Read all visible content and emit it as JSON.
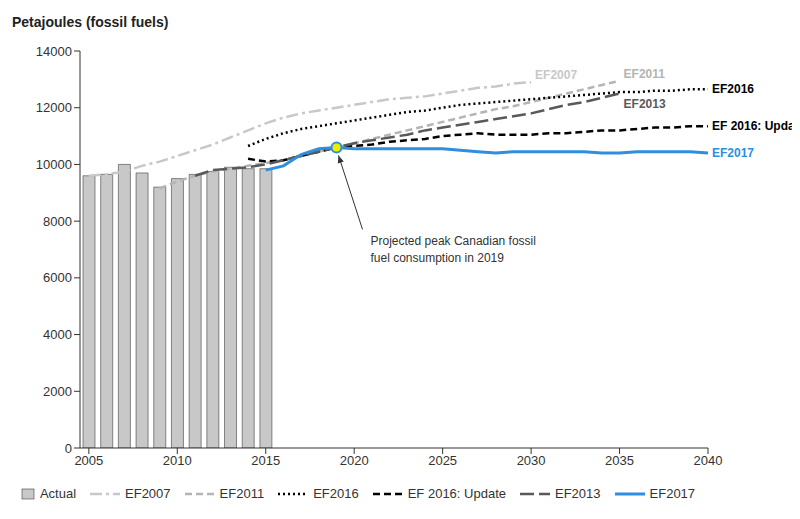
{
  "chart_data": {
    "type": "combo",
    "y_label": "Petajoules (fossil fuels)",
    "x": [
      2005,
      2006,
      2007,
      2008,
      2009,
      2010,
      2011,
      2012,
      2013,
      2014,
      2015,
      2016,
      2017,
      2018,
      2019,
      2020,
      2021,
      2022,
      2023,
      2024,
      2025,
      2026,
      2027,
      2028,
      2029,
      2030,
      2031,
      2032,
      2033,
      2034,
      2035,
      2036,
      2037,
      2038,
      2039,
      2040
    ],
    "series": [
      {
        "name": "Actual",
        "type": "bar",
        "color": "#c8c8c8",
        "values": [
          9600,
          9650,
          10000,
          9700,
          9200,
          9500,
          9650,
          9750,
          9900,
          9850,
          9850,
          null,
          null,
          null,
          null,
          null,
          null,
          null,
          null,
          null,
          null,
          null,
          null,
          null,
          null,
          null,
          null,
          null,
          null,
          null,
          null,
          null,
          null,
          null,
          null,
          null
        ]
      },
      {
        "name": "EF2007",
        "type": "line",
        "color": "#c8c8c8",
        "line_style": "dashdot",
        "values": [
          9600,
          9650,
          9750,
          9950,
          10100,
          10300,
          10500,
          10700,
          10950,
          11200,
          11450,
          11650,
          11800,
          11900,
          12000,
          12100,
          12200,
          12300,
          12350,
          12400,
          12500,
          12600,
          12700,
          12750,
          12850,
          12900,
          null,
          null,
          null,
          null,
          null,
          null,
          null,
          null,
          null,
          null
        ]
      },
      {
        "name": "EF2011",
        "type": "line",
        "color": "#b4b4b4",
        "line_style": "dashed",
        "values": [
          null,
          null,
          null,
          null,
          9150,
          9400,
          9600,
          9750,
          9850,
          9950,
          10050,
          10150,
          10300,
          10450,
          10600,
          10750,
          10900,
          11050,
          11200,
          11350,
          11500,
          11650,
          11800,
          11950,
          12050,
          12200,
          12350,
          12500,
          12650,
          12800,
          12950,
          null,
          null,
          null,
          null,
          null
        ]
      },
      {
        "name": "EF2016",
        "type": "line",
        "color": "#000000",
        "line_style": "dotted",
        "values": [
          null,
          null,
          null,
          null,
          null,
          null,
          null,
          null,
          null,
          10650,
          10900,
          11100,
          11250,
          11350,
          11450,
          11550,
          11650,
          11750,
          11850,
          11900,
          12000,
          12100,
          12150,
          12200,
          12250,
          12300,
          12350,
          12400,
          12450,
          12500,
          12550,
          12550,
          12600,
          12600,
          12650,
          12650
        ]
      },
      {
        "name": "EF 2016: Update",
        "type": "line",
        "color": "#000000",
        "line_style": "dashed",
        "values": [
          null,
          null,
          null,
          null,
          null,
          null,
          null,
          null,
          null,
          10200,
          10100,
          10150,
          10300,
          10450,
          10600,
          10650,
          10700,
          10800,
          10850,
          10900,
          11000,
          11050,
          11100,
          11050,
          11050,
          11050,
          11100,
          11100,
          11150,
          11200,
          11200,
          11250,
          11300,
          11300,
          11350,
          11350
        ]
      },
      {
        "name": "EF2013",
        "type": "line",
        "color": "#595959",
        "line_style": "longdash",
        "values": [
          null,
          null,
          null,
          null,
          null,
          null,
          9600,
          9800,
          9850,
          9900,
          10000,
          10150,
          10300,
          10450,
          10600,
          10750,
          10850,
          10950,
          11050,
          11200,
          11300,
          11400,
          11500,
          11600,
          11700,
          11800,
          11950,
          12100,
          12200,
          12350,
          12500,
          null,
          null,
          null,
          null,
          null
        ]
      },
      {
        "name": "EF2017",
        "type": "line",
        "color": "#2e8fe0",
        "line_style": "solid",
        "values": [
          null,
          null,
          null,
          null,
          null,
          null,
          null,
          null,
          null,
          null,
          9800,
          9950,
          10350,
          10550,
          10600,
          10550,
          10550,
          10550,
          10550,
          10550,
          10550,
          10500,
          10450,
          10400,
          10450,
          10450,
          10450,
          10450,
          10450,
          10400,
          10400,
          10450,
          10450,
          10450,
          10450,
          10400
        ]
      }
    ],
    "xlim": [
      2004.5,
      2040
    ],
    "xticks": [
      2005,
      2010,
      2015,
      2020,
      2025,
      2030,
      2035,
      2040
    ],
    "ylim": [
      0,
      14000
    ],
    "yticks": [
      0,
      2000,
      4000,
      6000,
      8000,
      10000,
      12000,
      14000
    ],
    "grid": false,
    "legend": "bottom",
    "annotations": [
      {
        "text": "Projected peak Canadian fossil fuel consumption in 2019",
        "x": 2019,
        "y": 10600,
        "marker": "circle",
        "color": "#eaf000"
      }
    ]
  }
}
